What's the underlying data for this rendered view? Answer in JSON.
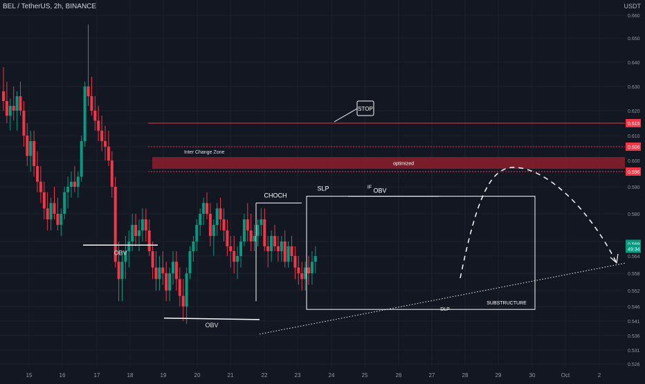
{
  "header": {
    "symbol": "BEL / TetherUS, 2h, BINANCE",
    "currency": "USDT"
  },
  "chart_data": {
    "type": "candlestick",
    "y_ticks": [
      0.66,
      0.65,
      0.64,
      0.63,
      0.62,
      0.615,
      0.61,
      0.606,
      0.6,
      0.596,
      0.59,
      0.58,
      0.57,
      0.564,
      0.558,
      0.552,
      0.546,
      0.541,
      0.536,
      0.531,
      0.526
    ],
    "y_tick_labels": [
      "0.660",
      "0.650",
      "0.640",
      "0.630",
      "0.620",
      "0.615",
      "0.610",
      "0.606",
      "0.600",
      "0.596",
      "0.590",
      "0.580",
      "0.570",
      "0.564",
      "0.558",
      "0.552",
      "0.546",
      "0.541",
      "0.536",
      "0.531",
      "0.526"
    ],
    "highlighted_prices": [
      {
        "label": "0.615",
        "value": 0.615,
        "color": "#f23645"
      },
      {
        "label": "0.606",
        "value": 0.606,
        "color": "#f23645"
      },
      {
        "label": "0.596",
        "value": 0.596,
        "color": "#f23645"
      },
      {
        "label": "0.569",
        "value": 0.569,
        "color": "#089981"
      },
      {
        "label": "49:34",
        "value": 0.567,
        "color": "#089981"
      }
    ],
    "x_labels": [
      "15",
      "16",
      "17",
      "18",
      "19",
      "20",
      "21",
      "22",
      "23",
      "24",
      "25",
      "26",
      "27",
      "28",
      "29",
      "30",
      "Oct",
      "2"
    ],
    "x_positions_days": [
      0,
      1,
      2,
      3,
      4,
      5,
      6,
      7,
      8,
      9,
      10,
      11,
      12,
      13,
      14,
      15,
      16,
      17
    ],
    "levels": [
      {
        "name": "stop-level",
        "price": 0.615,
        "style": "solid",
        "color": "#f23645"
      },
      {
        "name": "zone-top",
        "price": 0.606,
        "style": "dotted",
        "color": "#f23645"
      },
      {
        "name": "zone-bottom",
        "price": 0.596,
        "style": "dotted",
        "color": "#f23645"
      }
    ],
    "zone": {
      "top": 0.6015,
      "bottom": 0.597,
      "label": "optimized"
    },
    "annotations": {
      "stop": "STOP",
      "inter_change_zone": "Inter Change Zone",
      "optimized": "optimized",
      "obv_left": "OBV",
      "obv_bottom": "OBV",
      "choch": "CHOCH",
      "slp": "SLP",
      "if_label": "IF",
      "obv_top": "OBV",
      "dlp": "DLP",
      "substructure": "SUBSTRUCTURE"
    },
    "candles": [
      [
        0.0,
        0.628,
        0.638,
        0.62,
        0.624
      ],
      [
        0.1,
        0.624,
        0.632,
        0.615,
        0.618
      ],
      [
        0.2,
        0.618,
        0.625,
        0.612,
        0.622
      ],
      [
        0.3,
        0.622,
        0.63,
        0.616,
        0.62
      ],
      [
        0.4,
        0.62,
        0.628,
        0.612,
        0.626
      ],
      [
        0.5,
        0.626,
        0.632,
        0.618,
        0.62
      ],
      [
        0.6,
        0.62,
        0.624,
        0.606,
        0.61
      ],
      [
        0.7,
        0.61,
        0.615,
        0.598,
        0.602
      ],
      [
        0.8,
        0.602,
        0.612,
        0.596,
        0.608
      ],
      [
        0.9,
        0.608,
        0.612,
        0.594,
        0.598
      ],
      [
        1.0,
        0.598,
        0.604,
        0.588,
        0.592
      ],
      [
        1.1,
        0.592,
        0.598,
        0.584,
        0.588
      ],
      [
        1.2,
        0.588,
        0.592,
        0.578,
        0.582
      ],
      [
        1.3,
        0.582,
        0.588,
        0.574,
        0.578
      ],
      [
        1.4,
        0.578,
        0.586,
        0.574,
        0.584
      ],
      [
        1.5,
        0.584,
        0.59,
        0.578,
        0.58
      ],
      [
        1.6,
        0.58,
        0.586,
        0.574,
        0.576
      ],
      [
        1.7,
        0.576,
        0.582,
        0.572,
        0.58
      ],
      [
        1.8,
        0.58,
        0.59,
        0.578,
        0.588
      ],
      [
        1.9,
        0.588,
        0.594,
        0.582,
        0.59
      ],
      [
        2.0,
        0.59,
        0.596,
        0.586,
        0.592
      ],
      [
        2.1,
        0.592,
        0.598,
        0.588,
        0.59
      ],
      [
        2.2,
        0.59,
        0.596,
        0.586,
        0.594
      ],
      [
        2.3,
        0.594,
        0.61,
        0.592,
        0.608
      ],
      [
        2.4,
        0.608,
        0.632,
        0.606,
        0.63
      ],
      [
        2.5,
        0.63,
        0.656,
        0.622,
        0.626
      ],
      [
        2.6,
        0.626,
        0.634,
        0.618,
        0.62
      ],
      [
        2.7,
        0.62,
        0.626,
        0.612,
        0.616
      ],
      [
        2.8,
        0.616,
        0.622,
        0.608,
        0.612
      ],
      [
        2.9,
        0.612,
        0.618,
        0.604,
        0.608
      ],
      [
        3.0,
        0.608,
        0.614,
        0.6,
        0.606
      ],
      [
        3.1,
        0.606,
        0.612,
        0.598,
        0.6
      ],
      [
        3.2,
        0.6,
        0.604,
        0.586,
        0.59
      ],
      [
        3.3,
        0.59,
        0.594,
        0.56,
        0.562
      ],
      [
        3.4,
        0.562,
        0.57,
        0.548,
        0.556
      ],
      [
        3.5,
        0.556,
        0.566,
        0.548,
        0.562
      ],
      [
        3.6,
        0.562,
        0.572,
        0.556,
        0.566
      ],
      [
        3.7,
        0.566,
        0.574,
        0.56,
        0.57
      ],
      [
        3.8,
        0.57,
        0.58,
        0.566,
        0.576
      ],
      [
        3.9,
        0.576,
        0.58,
        0.568,
        0.572
      ],
      [
        4.0,
        0.572,
        0.578,
        0.566,
        0.574
      ],
      [
        4.1,
        0.574,
        0.582,
        0.57,
        0.578
      ],
      [
        4.2,
        0.578,
        0.582,
        0.57,
        0.574
      ],
      [
        4.3,
        0.574,
        0.578,
        0.564,
        0.566
      ],
      [
        4.4,
        0.566,
        0.57,
        0.556,
        0.56
      ],
      [
        4.5,
        0.56,
        0.566,
        0.552,
        0.556
      ],
      [
        4.6,
        0.556,
        0.564,
        0.552,
        0.56
      ],
      [
        4.7,
        0.56,
        0.566,
        0.554,
        0.558
      ],
      [
        4.8,
        0.558,
        0.562,
        0.548,
        0.552
      ],
      [
        4.9,
        0.552,
        0.56,
        0.548,
        0.558
      ],
      [
        5.0,
        0.558,
        0.566,
        0.554,
        0.562
      ],
      [
        5.1,
        0.562,
        0.566,
        0.552,
        0.556
      ],
      [
        5.2,
        0.556,
        0.56,
        0.546,
        0.55
      ],
      [
        5.3,
        0.55,
        0.556,
        0.541,
        0.546
      ],
      [
        5.4,
        0.546,
        0.56,
        0.54,
        0.558
      ],
      [
        5.5,
        0.558,
        0.568,
        0.556,
        0.566
      ],
      [
        5.6,
        0.566,
        0.572,
        0.562,
        0.57
      ],
      [
        5.7,
        0.57,
        0.578,
        0.566,
        0.576
      ],
      [
        5.8,
        0.576,
        0.582,
        0.572,
        0.58
      ],
      [
        5.9,
        0.58,
        0.586,
        0.576,
        0.584
      ],
      [
        6.0,
        0.584,
        0.588,
        0.578,
        0.58
      ],
      [
        6.1,
        0.58,
        0.584,
        0.568,
        0.572
      ],
      [
        6.2,
        0.572,
        0.578,
        0.564,
        0.576
      ],
      [
        6.3,
        0.576,
        0.584,
        0.572,
        0.582
      ],
      [
        6.4,
        0.582,
        0.586,
        0.574,
        0.578
      ],
      [
        6.5,
        0.578,
        0.582,
        0.57,
        0.574
      ],
      [
        6.6,
        0.574,
        0.578,
        0.564,
        0.568
      ],
      [
        6.7,
        0.568,
        0.572,
        0.56,
        0.566
      ],
      [
        6.8,
        0.566,
        0.572,
        0.558,
        0.562
      ],
      [
        6.9,
        0.562,
        0.568,
        0.556,
        0.564
      ],
      [
        7.0,
        0.564,
        0.572,
        0.56,
        0.57
      ],
      [
        7.1,
        0.57,
        0.58,
        0.568,
        0.578
      ],
      [
        7.2,
        0.578,
        0.584,
        0.57,
        0.574
      ],
      [
        7.3,
        0.574,
        0.58,
        0.566,
        0.57
      ],
      [
        7.4,
        0.57,
        0.576,
        0.566,
        0.572
      ],
      [
        7.5,
        0.572,
        0.578,
        0.568,
        0.576
      ],
      [
        7.6,
        0.576,
        0.582,
        0.572,
        0.578
      ],
      [
        7.7,
        0.578,
        0.582,
        0.566,
        0.568
      ],
      [
        7.8,
        0.568,
        0.572,
        0.56,
        0.566
      ],
      [
        7.9,
        0.566,
        0.574,
        0.562,
        0.572
      ],
      [
        8.0,
        0.572,
        0.576,
        0.566,
        0.568
      ],
      [
        8.1,
        0.568,
        0.572,
        0.562,
        0.566
      ],
      [
        8.2,
        0.566,
        0.572,
        0.562,
        0.57
      ],
      [
        8.3,
        0.57,
        0.574,
        0.56,
        0.562
      ],
      [
        8.4,
        0.562,
        0.57,
        0.56,
        0.568
      ],
      [
        8.5,
        0.568,
        0.572,
        0.562,
        0.564
      ],
      [
        8.6,
        0.564,
        0.568,
        0.556,
        0.56
      ],
      [
        8.7,
        0.56,
        0.564,
        0.554,
        0.558
      ],
      [
        8.8,
        0.558,
        0.562,
        0.552,
        0.556
      ],
      [
        8.9,
        0.556,
        0.562,
        0.552,
        0.56
      ],
      [
        9.0,
        0.56,
        0.564,
        0.554,
        0.558
      ],
      [
        9.1,
        0.558,
        0.566,
        0.554,
        0.562
      ],
      [
        9.2,
        0.562,
        0.568,
        0.558,
        0.564
      ]
    ]
  }
}
